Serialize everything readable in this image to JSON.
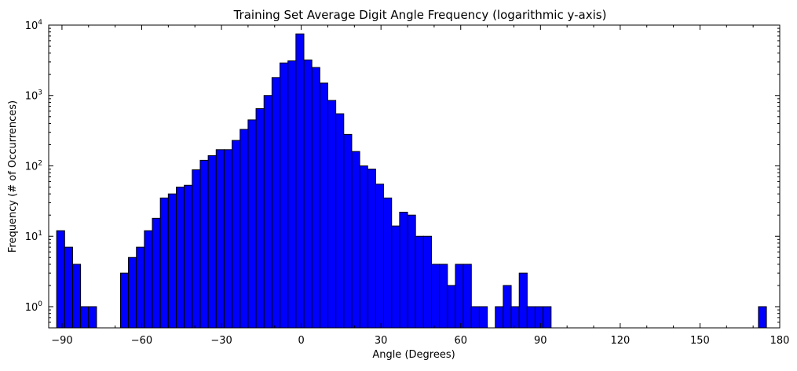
{
  "chart_data": {
    "type": "bar",
    "title": "Training Set Average Digit Angle Frequency (logarithmic y-axis)",
    "xlabel": "Angle (Degrees)",
    "ylabel": "Frequency (# of Occurrences)",
    "xlim": [
      -95,
      180
    ],
    "ylim": [
      0.5,
      10000
    ],
    "y_scale": "log",
    "bin_width": 3,
    "bar_color": "#0000ff",
    "edge_color": "#000000",
    "grid": false,
    "x_ticks": [
      -90,
      -60,
      -30,
      0,
      30,
      60,
      90,
      120,
      150,
      180
    ],
    "x_tick_labels": [
      "−90",
      "−60",
      "−30",
      "0",
      "30",
      "60",
      "90",
      "120",
      "150",
      "180"
    ],
    "y_ticks": [
      1,
      10,
      100,
      1000,
      10000
    ],
    "y_tick_labels": [
      {
        "base": "10",
        "exp": "0"
      },
      {
        "base": "10",
        "exp": "1"
      },
      {
        "base": "10",
        "exp": "2"
      },
      {
        "base": "10",
        "exp": "3"
      },
      {
        "base": "10",
        "exp": "4"
      }
    ],
    "bins_start": [
      -92,
      -89,
      -86,
      -83,
      -80,
      -68,
      -65,
      -62,
      -59,
      -56,
      -53,
      -50,
      -47,
      -44,
      -41,
      -38,
      -35,
      -32,
      -29,
      -26,
      -23,
      -20,
      -17,
      -14,
      -11,
      -8,
      -5,
      -2,
      1,
      4,
      7,
      10,
      13,
      16,
      19,
      22,
      25,
      28,
      31,
      34,
      37,
      40,
      43,
      46,
      49,
      52,
      55,
      58,
      61,
      64,
      67,
      73,
      76,
      79,
      82,
      85,
      88,
      91,
      172
    ],
    "values": [
      12,
      7,
      4,
      1,
      1,
      3,
      5,
      7,
      12,
      18,
      35,
      40,
      50,
      53,
      88,
      120,
      140,
      170,
      170,
      230,
      330,
      450,
      650,
      1000,
      1800,
      2900,
      3100,
      7500,
      3200,
      2500,
      1500,
      850,
      550,
      280,
      160,
      100,
      90,
      55,
      35,
      14,
      22,
      20,
      10,
      10,
      4,
      4,
      2,
      4,
      4,
      1,
      1,
      1,
      2,
      1,
      3,
      1,
      1,
      1,
      1
    ]
  }
}
